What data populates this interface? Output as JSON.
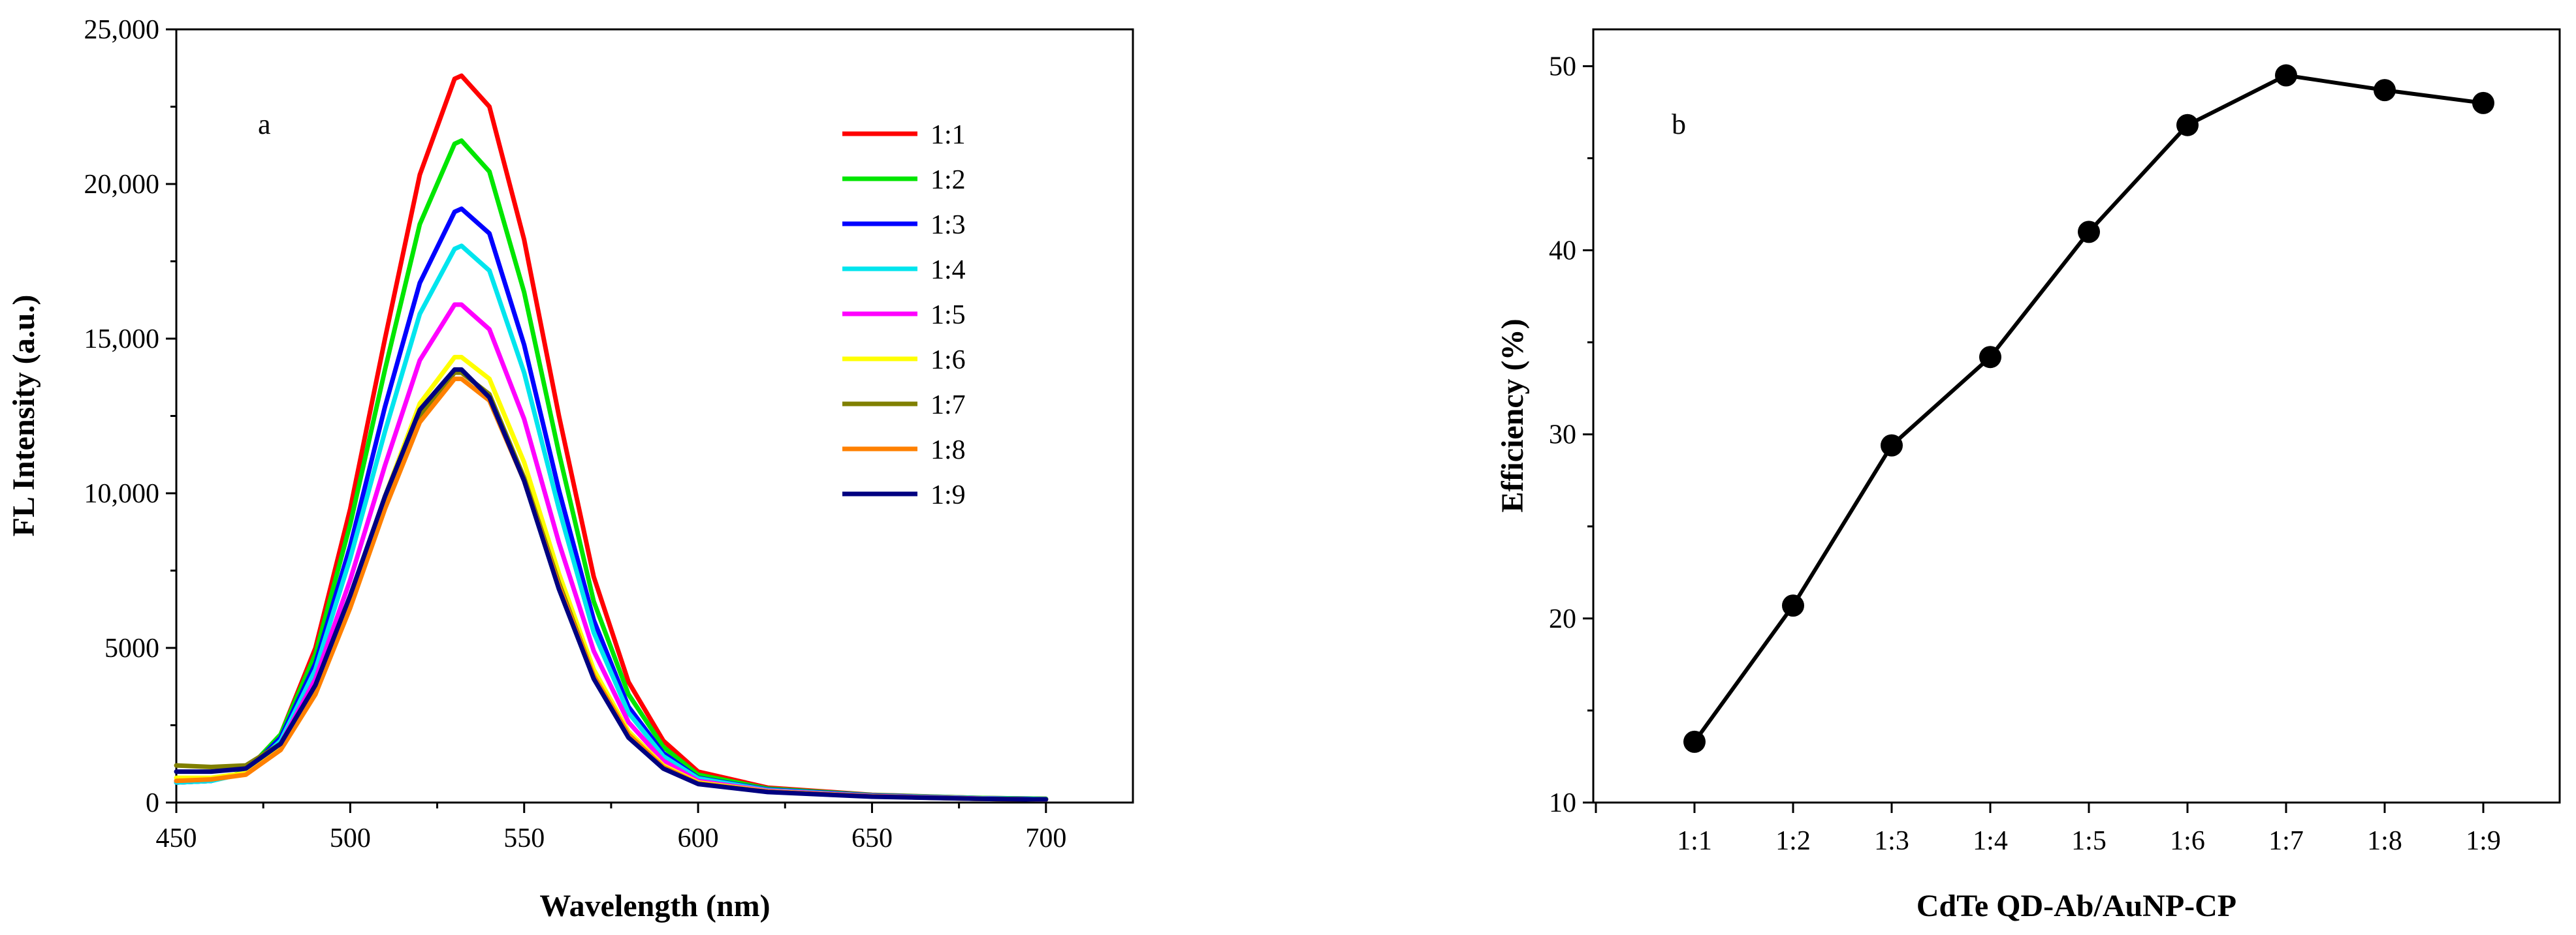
{
  "chart_data": [
    {
      "type": "line",
      "panel_label": "a",
      "xlabel": "Wavelength (nm)",
      "ylabel": "FL Intensity (a.u.)",
      "xlim": [
        450,
        725
      ],
      "ylim": [
        0,
        25000
      ],
      "x_ticks": [
        450,
        500,
        550,
        600,
        650,
        700
      ],
      "y_ticks": [
        0,
        5000,
        10000,
        15000,
        20000,
        25000
      ],
      "y_tick_labels": [
        "0",
        "5000",
        "10,000",
        "15,000",
        "20,000",
        "25,000"
      ],
      "grid": false,
      "legend_position": "top-right",
      "x": [
        450,
        460,
        470,
        480,
        490,
        500,
        510,
        520,
        530,
        532,
        540,
        550,
        560,
        570,
        580,
        590,
        600,
        620,
        650,
        680,
        700
      ],
      "series": [
        {
          "name": "1:1",
          "color": "#ff0000",
          "values": [
            650,
            700,
            1000,
            2200,
            5000,
            9500,
            15000,
            20300,
            23400,
            23500,
            22500,
            18200,
            12500,
            7300,
            3900,
            2000,
            1000,
            480,
            250,
            150,
            120
          ]
        },
        {
          "name": "1:2",
          "color": "#00e600",
          "values": [
            650,
            700,
            1000,
            2200,
            4800,
            9000,
            14000,
            18700,
            21300,
            21400,
            20400,
            16500,
            11300,
            6500,
            3500,
            1800,
            900,
            450,
            240,
            150,
            120
          ]
        },
        {
          "name": "1:3",
          "color": "#0000ff",
          "values": [
            650,
            700,
            980,
            2100,
            4500,
            8300,
            12800,
            16800,
            19100,
            19200,
            18400,
            14800,
            10100,
            5900,
            3100,
            1600,
            800,
            420,
            230,
            140,
            110
          ]
        },
        {
          "name": "1:4",
          "color": "#00e5ee",
          "values": [
            650,
            700,
            950,
            2000,
            4300,
            7900,
            12000,
            15800,
            17900,
            18000,
            17200,
            13900,
            9500,
            5500,
            2900,
            1500,
            780,
            400,
            220,
            140,
            110
          ]
        },
        {
          "name": "1:5",
          "color": "#ff00ff",
          "values": [
            700,
            750,
            950,
            1900,
            4000,
            7200,
            10900,
            14300,
            16100,
            16100,
            15300,
            12400,
            8400,
            4900,
            2600,
            1350,
            700,
            380,
            210,
            130,
            100
          ]
        },
        {
          "name": "1:6",
          "color": "#ffff00",
          "values": [
            800,
            800,
            950,
            1800,
            3700,
            6600,
            9900,
            12900,
            14400,
            14400,
            13700,
            11000,
            7400,
            4300,
            2300,
            1200,
            650,
            360,
            200,
            120,
            100
          ]
        },
        {
          "name": "1:7",
          "color": "#808000",
          "values": [
            1200,
            1150,
            1200,
            1900,
            3700,
            6500,
            9700,
            12500,
            13900,
            13900,
            13200,
            10500,
            7100,
            4100,
            2200,
            1150,
            620,
            350,
            200,
            120,
            100
          ]
        },
        {
          "name": "1:8",
          "color": "#ff8000",
          "values": [
            700,
            750,
            900,
            1700,
            3500,
            6300,
            9500,
            12300,
            13700,
            13700,
            13000,
            10400,
            7000,
            4100,
            2200,
            1150,
            620,
            350,
            200,
            120,
            100
          ]
        },
        {
          "name": "1:9",
          "color": "#000080",
          "values": [
            1000,
            1000,
            1100,
            1900,
            3800,
            6700,
            9900,
            12700,
            14000,
            14000,
            13100,
            10400,
            6900,
            4000,
            2100,
            1100,
            600,
            340,
            190,
            120,
            100
          ]
        }
      ]
    },
    {
      "type": "line",
      "panel_label": "b",
      "xlabel": "CdTe QD-Ab/AuNP-CP",
      "ylabel": "Efficiency (%)",
      "ylim": [
        10,
        52
      ],
      "y_ticks": [
        10,
        20,
        30,
        40,
        50
      ],
      "grid": false,
      "markers": "filled-circle",
      "categories": [
        "1:1",
        "1:2",
        "1:3",
        "1:4",
        "1:5",
        "1:6",
        "1:7",
        "1:8",
        "1:9"
      ],
      "values": [
        13.3,
        20.7,
        29.4,
        34.2,
        41.0,
        46.8,
        49.5,
        48.7,
        48.0
      ]
    }
  ]
}
